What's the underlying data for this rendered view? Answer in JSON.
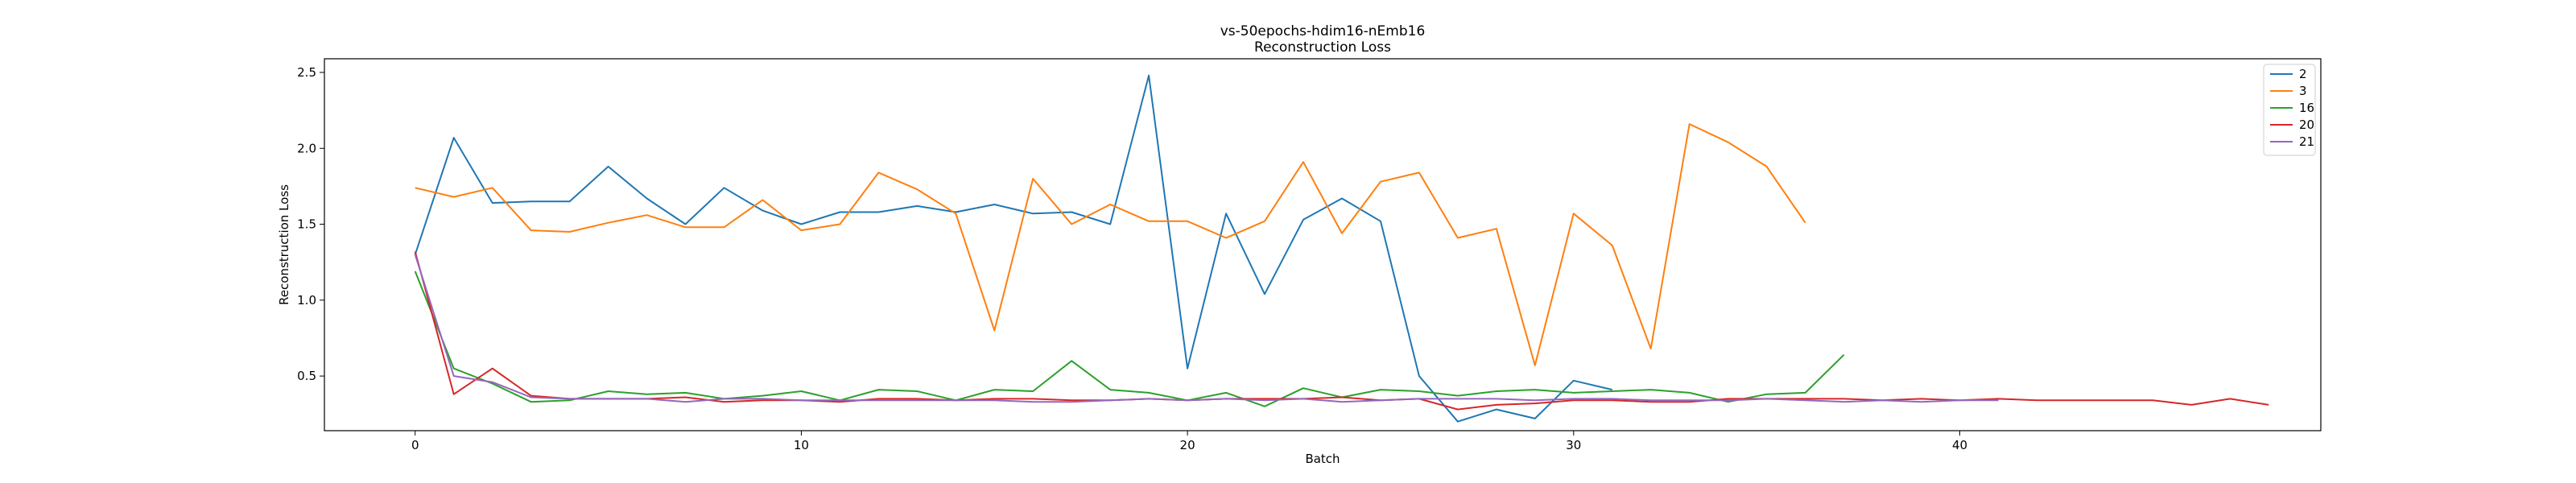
{
  "chart_data": {
    "type": "line",
    "title": "vs-50epochs-hdim16-nEmb16",
    "subtitle": "Reconstruction Loss",
    "xlabel": "Batch",
    "ylabel": "Reconstruction Loss",
    "xlim": [
      -2.35,
      49.35
    ],
    "ylim": [
      0.14,
      2.59
    ],
    "xticks": [
      0,
      10,
      20,
      30,
      40
    ],
    "yticks": [
      0.5,
      1.0,
      1.5,
      2.0,
      2.5
    ],
    "xtick_labels": [
      "0",
      "10",
      "20",
      "30",
      "40"
    ],
    "ytick_labels": [
      "0.5",
      "1.0",
      "1.5",
      "2.0",
      "2.5"
    ],
    "grid": false,
    "legend_position": "top-right",
    "series": [
      {
        "name": "2",
        "color": "#1f77b4",
        "values": [
          1.3,
          2.07,
          1.64,
          1.65,
          1.65,
          1.88,
          1.67,
          1.5,
          1.74,
          1.59,
          1.5,
          1.58,
          1.58,
          1.62,
          1.58,
          1.63,
          1.57,
          1.58,
          1.5,
          2.48,
          0.55,
          1.57,
          1.04,
          1.53,
          1.67,
          1.52,
          0.5,
          0.2,
          0.28,
          0.22,
          0.47,
          0.41
        ]
      },
      {
        "name": "3",
        "color": "#ff7f0e",
        "values": [
          1.74,
          1.68,
          1.74,
          1.46,
          1.45,
          1.51,
          1.56,
          1.48,
          1.48,
          1.66,
          1.46,
          1.5,
          1.84,
          1.73,
          1.57,
          0.8,
          1.8,
          1.5,
          1.63,
          1.52,
          1.52,
          1.41,
          1.52,
          1.91,
          1.44,
          1.78,
          1.84,
          1.41,
          1.47,
          0.57,
          1.57,
          1.36,
          0.68,
          2.16,
          2.04,
          1.88,
          1.51
        ]
      },
      {
        "name": "16",
        "color": "#2ca02c",
        "values": [
          1.19,
          0.55,
          0.45,
          0.33,
          0.34,
          0.4,
          0.38,
          0.39,
          0.35,
          0.37,
          0.4,
          0.34,
          0.41,
          0.4,
          0.34,
          0.41,
          0.4,
          0.6,
          0.41,
          0.39,
          0.34,
          0.39,
          0.3,
          0.42,
          0.36,
          0.41,
          0.4,
          0.37,
          0.4,
          0.41,
          0.39,
          0.4,
          0.41,
          0.39,
          0.33,
          0.38,
          0.39,
          0.64
        ]
      },
      {
        "name": "20",
        "color": "#d62728",
        "values": [
          1.32,
          0.38,
          0.55,
          0.37,
          0.35,
          0.35,
          0.35,
          0.36,
          0.33,
          0.34,
          0.34,
          0.33,
          0.35,
          0.35,
          0.34,
          0.35,
          0.35,
          0.34,
          0.34,
          0.35,
          0.34,
          0.35,
          0.35,
          0.35,
          0.36,
          0.34,
          0.35,
          0.28,
          0.31,
          0.32,
          0.34,
          0.34,
          0.33,
          0.33,
          0.35,
          0.35,
          0.35,
          0.35,
          0.34,
          0.35,
          0.34,
          0.35,
          0.34,
          0.34,
          0.34,
          0.34,
          0.31,
          0.35,
          0.31
        ]
      },
      {
        "name": "21",
        "color": "#9467bd",
        "values": [
          1.3,
          0.5,
          0.46,
          0.36,
          0.35,
          0.35,
          0.35,
          0.33,
          0.35,
          0.35,
          0.34,
          0.34,
          0.34,
          0.34,
          0.34,
          0.34,
          0.33,
          0.33,
          0.34,
          0.35,
          0.34,
          0.35,
          0.34,
          0.35,
          0.33,
          0.34,
          0.35,
          0.35,
          0.35,
          0.34,
          0.35,
          0.35,
          0.34,
          0.34,
          0.34,
          0.35,
          0.34,
          0.33,
          0.34,
          0.33,
          0.34,
          0.34
        ]
      }
    ]
  }
}
